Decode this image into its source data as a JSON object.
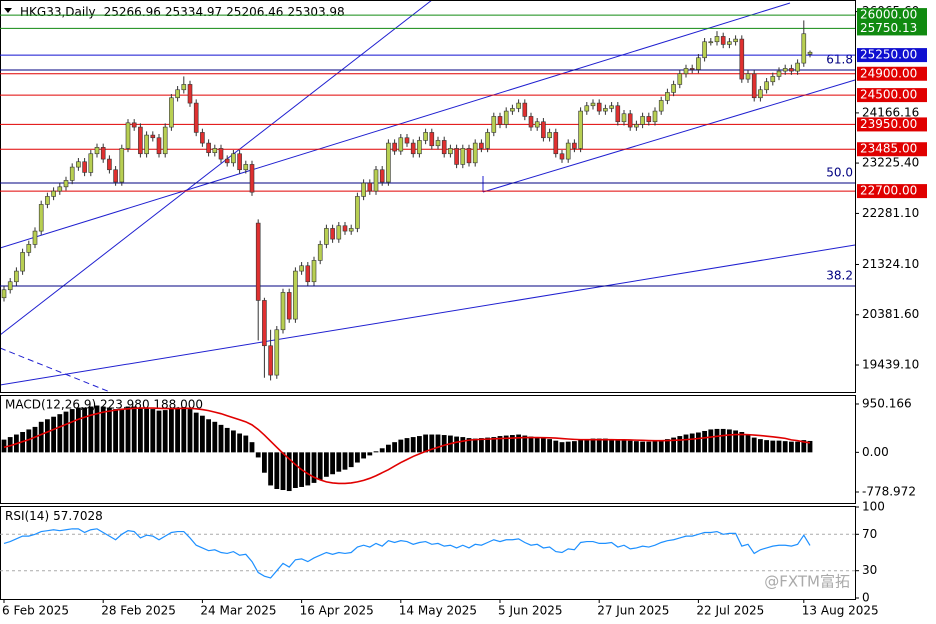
{
  "chart_data": [
    {
      "type": "candlestick",
      "title": "HKG33,Daily",
      "categories": [
        "6 Feb 2025",
        null,
        null,
        null,
        null,
        null,
        null,
        null,
        null,
        null,
        null,
        null,
        null,
        null,
        null,
        null,
        "28 Feb 2025",
        null,
        null,
        null,
        null,
        null,
        null,
        null,
        null,
        null,
        null,
        null,
        null,
        null,
        null,
        null,
        "24 Mar 2025",
        null,
        null,
        null,
        null,
        null,
        null,
        null,
        null,
        null,
        null,
        null,
        null,
        null,
        null,
        null,
        "16 Apr 2025",
        null,
        null,
        null,
        null,
        null,
        null,
        null,
        null,
        null,
        null,
        null,
        null,
        null,
        null,
        null,
        "14 May 2025",
        null,
        null,
        null,
        null,
        null,
        null,
        null,
        null,
        null,
        null,
        null,
        null,
        null,
        null,
        null,
        "5 Jun 2025",
        null,
        null,
        null,
        null,
        null,
        null,
        null,
        null,
        null,
        null,
        null,
        null,
        null,
        null,
        null,
        "27 Jun 2025",
        null,
        null,
        null,
        null,
        null,
        null,
        null,
        null,
        null,
        null,
        null,
        null,
        null,
        null,
        null,
        "22 Jul 2025",
        null,
        null,
        null,
        null,
        null,
        null,
        null,
        null,
        null,
        null,
        null,
        null,
        null,
        null,
        null,
        null,
        "13 Aug 2025",
        null
      ],
      "open": [
        20700,
        20850,
        21000,
        21200,
        21550,
        21700,
        21950,
        22450,
        22600,
        22700,
        22780,
        22900,
        23150,
        23250,
        23050,
        23400,
        23520,
        23300,
        23100,
        22870,
        23500,
        23980,
        23900,
        23400,
        23750,
        23700,
        23400,
        23900,
        24450,
        24600,
        24700,
        24350,
        23800,
        23600,
        23420,
        23500,
        23300,
        23230,
        23400,
        23100,
        23200,
        22100,
        20650,
        19800,
        19250,
        20100,
        20800,
        20300,
        21200,
        21300,
        21000,
        21400,
        21700,
        22000,
        21800,
        22050,
        21950,
        22000,
        22600,
        22850,
        22700,
        23100,
        22870,
        23600,
        23450,
        23700,
        23600,
        23400,
        23650,
        23800,
        23550,
        23650,
        23400,
        23500,
        23200,
        23500,
        23230,
        23600,
        23500,
        23800,
        24100,
        23950,
        24200,
        24250,
        24350,
        24100,
        23900,
        24000,
        23700,
        23800,
        23400,
        23300,
        23600,
        23500,
        24200,
        24300,
        24350,
        24200,
        24250,
        24300,
        24000,
        24150,
        23900,
        23950,
        24100,
        24000,
        24200,
        24400,
        24550,
        24700,
        24900,
        25000,
        24980,
        25200,
        25500,
        25500,
        25600,
        25450,
        25500,
        25550,
        24800,
        24900,
        24450,
        24600,
        24750,
        24850,
        24950,
        25000,
        24950,
        25100,
        25266.96
      ],
      "close": [
        20850,
        21000,
        21200,
        21550,
        21700,
        21950,
        22450,
        22600,
        22700,
        22780,
        22900,
        23150,
        23250,
        23050,
        23400,
        23520,
        23300,
        23100,
        22870,
        23500,
        23980,
        23900,
        23400,
        23750,
        23700,
        23400,
        23900,
        24450,
        24600,
        24700,
        24350,
        23800,
        23600,
        23420,
        23500,
        23300,
        23230,
        23400,
        23100,
        23200,
        22680,
        20650,
        19800,
        19250,
        20100,
        20800,
        20300,
        21200,
        21300,
        21000,
        21400,
        21700,
        22000,
        21800,
        22050,
        21950,
        22000,
        22600,
        22850,
        22700,
        23100,
        22870,
        23600,
        23450,
        23700,
        23600,
        23400,
        23650,
        23800,
        23550,
        23650,
        23400,
        23500,
        23200,
        23500,
        23230,
        23600,
        23500,
        23800,
        24100,
        23950,
        24200,
        24250,
        24350,
        24100,
        23900,
        24000,
        23700,
        23800,
        23400,
        23300,
        23600,
        23500,
        24200,
        24300,
        24350,
        24200,
        24250,
        24300,
        24000,
        24150,
        23900,
        23950,
        24100,
        24000,
        24200,
        24400,
        24550,
        24700,
        24900,
        25000,
        24980,
        25200,
        25500,
        25500,
        25600,
        25450,
        25500,
        25550,
        24800,
        24900,
        24450,
        24600,
        24750,
        24850,
        24950,
        25000,
        24950,
        25100,
        25650,
        25303.98
      ],
      "high": [
        20920,
        21070,
        21270,
        21620,
        21770,
        22020,
        22520,
        22670,
        22770,
        22850,
        22970,
        23220,
        23320,
        23320,
        23470,
        23590,
        23590,
        23370,
        23170,
        23570,
        24050,
        24050,
        23970,
        23820,
        23820,
        23770,
        23970,
        24520,
        24670,
        24850,
        24770,
        24420,
        23870,
        23670,
        23570,
        23570,
        23370,
        23470,
        23470,
        23270,
        23270,
        22170,
        20700,
        20100,
        20170,
        20870,
        20870,
        21270,
        21370,
        21370,
        21470,
        21770,
        22070,
        22070,
        22120,
        22120,
        22070,
        22670,
        22920,
        22920,
        23170,
        23170,
        23670,
        23670,
        23770,
        23770,
        23670,
        23720,
        23870,
        23870,
        23720,
        23720,
        23570,
        23570,
        23570,
        23570,
        23670,
        23670,
        23870,
        24170,
        24170,
        24270,
        24320,
        24420,
        24420,
        24170,
        24070,
        24070,
        23870,
        23870,
        23470,
        23670,
        23670,
        24270,
        24370,
        24420,
        24420,
        24320,
        24370,
        24370,
        24220,
        24220,
        24020,
        24170,
        24170,
        24270,
        24470,
        24620,
        24770,
        24970,
        25070,
        25070,
        25270,
        25570,
        25570,
        25700,
        25670,
        25570,
        25620,
        25620,
        24970,
        24970,
        24670,
        24820,
        24920,
        25020,
        25070,
        25070,
        25170,
        25900,
        25334.97
      ],
      "low": [
        20630,
        20780,
        20930,
        21130,
        21480,
        21630,
        21880,
        22380,
        22530,
        22630,
        22710,
        22830,
        23080,
        22980,
        22980,
        23330,
        23230,
        23030,
        22800,
        22800,
        23430,
        23830,
        23330,
        23330,
        23630,
        23330,
        23330,
        23830,
        24380,
        24530,
        24280,
        23730,
        23530,
        23350,
        23350,
        23230,
        23160,
        23160,
        23030,
        23030,
        22610,
        19900,
        19200,
        19150,
        19180,
        20030,
        20230,
        20230,
        21130,
        20930,
        20930,
        21330,
        21630,
        21730,
        21730,
        21880,
        21880,
        21930,
        22530,
        22630,
        22630,
        22800,
        22800,
        23380,
        23380,
        23530,
        23330,
        23330,
        23580,
        23480,
        23480,
        23330,
        23330,
        23130,
        23130,
        23160,
        23160,
        23430,
        23430,
        23730,
        23880,
        23880,
        24130,
        24180,
        24030,
        23830,
        23830,
        23630,
        23630,
        23330,
        23230,
        23230,
        23430,
        23430,
        24130,
        24230,
        24130,
        24130,
        24180,
        23930,
        23930,
        23830,
        23830,
        23880,
        23930,
        23930,
        24130,
        24330,
        24480,
        24630,
        24830,
        24910,
        24910,
        25130,
        25430,
        25430,
        25380,
        25380,
        25430,
        24730,
        24730,
        24380,
        24380,
        24530,
        24680,
        24780,
        24880,
        24880,
        24880,
        25030,
        25206.46
      ],
      "up_color": "#b8cf52",
      "down_color": "#e03030",
      "ylim": [
        18933,
        26283
      ],
      "yticks": [
        {
          "value": 26065.6,
          "label": "26065.60"
        },
        24166.16,
        {
          "value": 23225.4,
          "label": "23225.40"
        },
        {
          "value": 22281.1,
          "label": "22281.10"
        },
        {
          "value": 21324.1,
          "label": "21324.10"
        },
        {
          "value": 20381.6,
          "label": "20381.60"
        },
        {
          "value": 19439.1,
          "label": "19439.10"
        }
      ],
      "levels": [
        {
          "value": 26000,
          "label": "26000.00",
          "color": "#108a10"
        },
        {
          "value": 25750.13,
          "label": "25750.13",
          "color": "#108a10"
        },
        {
          "value": 25250,
          "label": "25250.00",
          "color": "#1010d0"
        },
        {
          "value": 24900,
          "label": "24900.00",
          "color": "#e00000"
        },
        {
          "value": 24500,
          "label": "24500.00",
          "color": "#e00000"
        },
        {
          "value": 23950,
          "label": "23950.00",
          "color": "#e00000"
        },
        {
          "value": 23485,
          "label": "23485.00",
          "color": "#e00000"
        },
        {
          "value": 22700,
          "label": "22700.00",
          "color": "#e00000"
        }
      ],
      "fib": [
        {
          "value": 24970,
          "label": "61.8"
        },
        {
          "value": 22852,
          "label": "50.0"
        },
        {
          "value": 20921,
          "label": "38.2"
        }
      ],
      "fib_color": "#000080"
    },
    {
      "type": "macd",
      "title": "MACD(12,26,9) 223.980 188.000",
      "values": [
        250,
        300,
        350,
        400,
        450,
        500,
        600,
        650,
        700,
        750,
        800,
        850,
        880,
        880,
        900,
        920,
        900,
        880,
        850,
        860,
        900,
        900,
        870,
        860,
        850,
        820,
        830,
        860,
        880,
        890,
        850,
        780,
        720,
        650,
        600,
        540,
        480,
        430,
        370,
        330,
        200,
        -100,
        -400,
        -650,
        -720,
        -740,
        -760,
        -700,
        -680,
        -650,
        -600,
        -540,
        -480,
        -430,
        -380,
        -340,
        -290,
        -200,
        -120,
        -60,
        20,
        80,
        150,
        200,
        250,
        280,
        300,
        320,
        350,
        350,
        350,
        340,
        330,
        310,
        300,
        280,
        270,
        280,
        290,
        300,
        320,
        330,
        340,
        350,
        330,
        310,
        300,
        280,
        260,
        230,
        200,
        210,
        220,
        250,
        260,
        270,
        270,
        270,
        260,
        250,
        240,
        230,
        220,
        210,
        210,
        220,
        240,
        260,
        290,
        320,
        350,
        370,
        390,
        420,
        450,
        460,
        460,
        450,
        430,
        400,
        340,
        290,
        260,
        240,
        230,
        230,
        220,
        210,
        210,
        240,
        223.98
      ],
      "color": "#000000",
      "signal": {
        "color": "#e00000",
        "values": [
          100,
          130,
          170,
          210,
          250,
          300,
          350,
          400,
          450,
          500,
          550,
          600,
          650,
          690,
          730,
          760,
          790,
          810,
          830,
          845,
          855,
          865,
          870,
          870,
          870,
          865,
          860,
          860,
          860,
          865,
          865,
          855,
          840,
          820,
          790,
          760,
          720,
          680,
          640,
          600,
          540,
          450,
          340,
          220,
          100,
          -20,
          -130,
          -240,
          -340,
          -420,
          -490,
          -540,
          -580,
          -600,
          -610,
          -610,
          -600,
          -580,
          -550,
          -510,
          -460,
          -400,
          -340,
          -270,
          -200,
          -140,
          -80,
          -30,
          20,
          60,
          100,
          140,
          170,
          200,
          220,
          240,
          250,
          255,
          260,
          265,
          270,
          275,
          280,
          285,
          290,
          290,
          290,
          288,
          285,
          280,
          270,
          262,
          255,
          250,
          248,
          248,
          248,
          248,
          248,
          247,
          246,
          244,
          240,
          236,
          232,
          230,
          230,
          232,
          236,
          242,
          250,
          260,
          272,
          285,
          300,
          315,
          330,
          342,
          350,
          352,
          348,
          340,
          330,
          318,
          305,
          290,
          275,
          245,
          230,
          205,
          188
        ]
      },
      "ylim": [
        -995,
        1107
      ],
      "yticks": [
        950.166,
        {
          "value": 0,
          "label": "0.00"
        },
        -778.972
      ]
    },
    {
      "type": "line",
      "title": "RSI(14)",
      "color": "#1e90ff",
      "values": [
        60,
        62,
        65,
        68,
        68,
        70,
        73,
        74,
        75,
        74,
        75,
        76,
        76,
        72,
        75,
        76,
        72,
        68,
        64,
        70,
        74,
        73,
        66,
        69,
        68,
        64,
        68,
        72,
        73,
        73,
        66,
        58,
        55,
        52,
        53,
        50,
        49,
        51,
        47,
        48,
        40,
        28,
        24,
        22,
        30,
        38,
        34,
        42,
        43,
        40,
        44,
        47,
        50,
        48,
        50,
        49,
        50,
        56,
        58,
        56,
        60,
        57,
        63,
        61,
        63,
        62,
        59,
        61,
        62,
        59,
        60,
        57,
        58,
        55,
        58,
        55,
        59,
        58,
        61,
        64,
        62,
        64,
        64,
        65,
        61,
        58,
        59,
        55,
        56,
        51,
        50,
        54,
        53,
        61,
        62,
        62,
        60,
        60,
        61,
        56,
        58,
        54,
        55,
        57,
        56,
        58,
        61,
        63,
        64,
        66,
        68,
        68,
        70,
        72,
        72,
        73,
        70,
        71,
        71,
        57,
        59,
        49,
        53,
        55,
        57,
        58,
        58,
        57,
        59,
        69,
        57.7028
      ],
      "ylim": [
        0,
        100
      ],
      "yticks": [
        100,
        70,
        30,
        0
      ]
    }
  ],
  "watermark": "@FXTM富拓"
}
